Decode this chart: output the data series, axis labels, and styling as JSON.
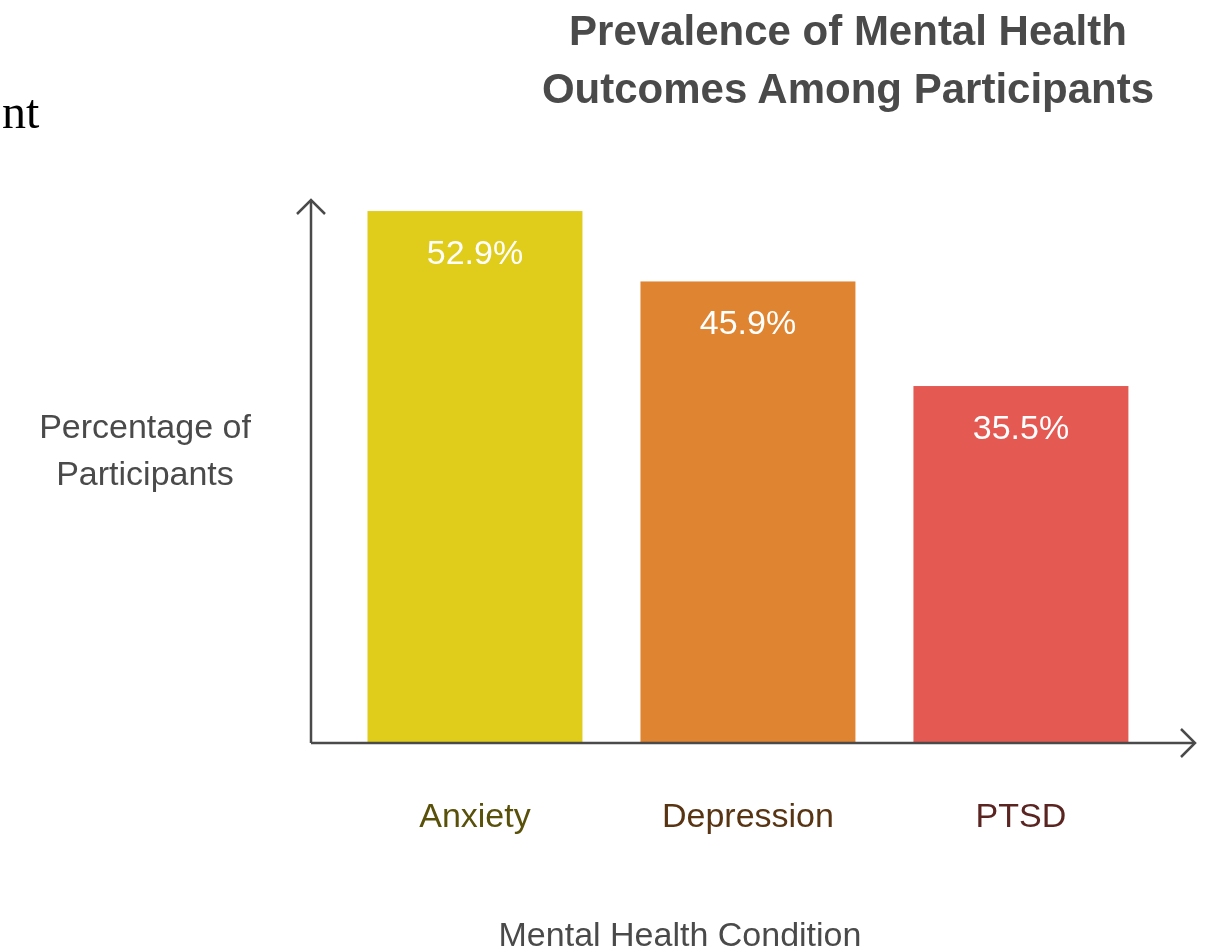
{
  "chart_data": {
    "type": "bar",
    "title": "Prevalence of Mental Health\nOutcomes Among Participants",
    "xlabel": "Mental Health Condition",
    "ylabel": "Percentage of\nParticipants",
    "categories": [
      "Anxiety",
      "Depression",
      "PTSD"
    ],
    "values": [
      52.9,
      45.9,
      35.5
    ],
    "colors": [
      "#e0cc1a",
      "#df8430",
      "#e45a53"
    ],
    "value_labels": [
      "52.9%",
      "45.9%",
      "35.5%"
    ],
    "ylim": [
      0,
      54
    ],
    "tick_labels": "x",
    "annotations": [
      "nt"
    ]
  }
}
